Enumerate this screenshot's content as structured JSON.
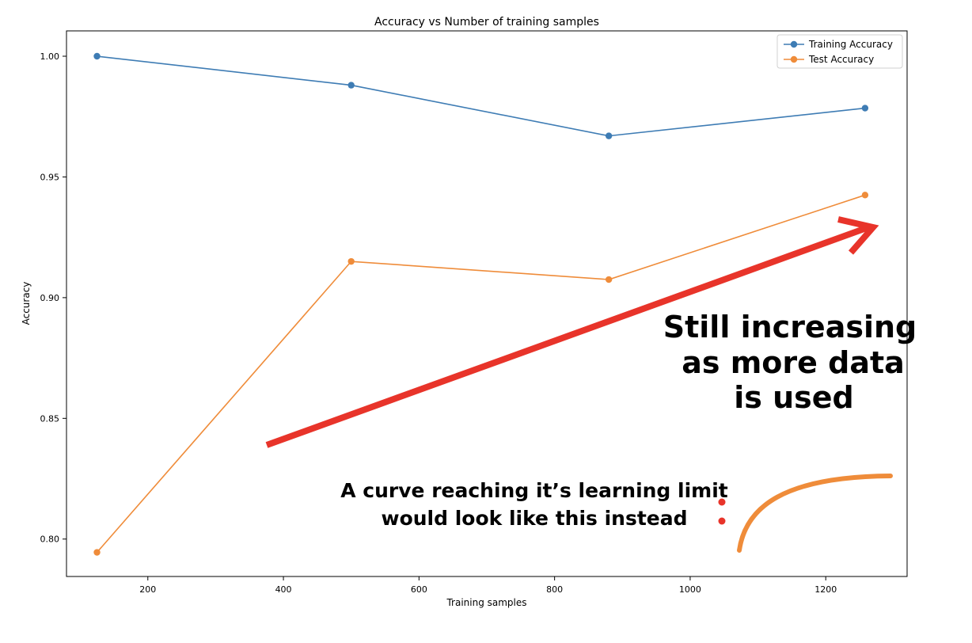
{
  "chart_data": {
    "type": "line",
    "title": "Accuracy vs Number of training samples",
    "xlabel": "Training samples",
    "ylabel": "Accuracy",
    "xlim": [
      80,
      1320
    ],
    "ylim": [
      0.7845,
      1.0105
    ],
    "x_ticks": [
      200,
      400,
      600,
      800,
      1000,
      1200
    ],
    "y_ticks": [
      0.8,
      0.85,
      0.9,
      0.95,
      1.0
    ],
    "x_tick_labels": [
      "200",
      "400",
      "600",
      "800",
      "1000",
      "1200"
    ],
    "y_tick_labels": [
      "0.80",
      "0.85",
      "0.90",
      "0.95",
      "1.00"
    ],
    "grid": false,
    "legend_position": "top-right",
    "x": [
      125,
      500,
      880,
      1258
    ],
    "series": [
      {
        "name": "Training Accuracy",
        "color": "#3e7cb4",
        "values": [
          1.0,
          0.988,
          0.967,
          0.9785
        ]
      },
      {
        "name": "Test Accuracy",
        "color": "#ef8c3a",
        "values": [
          0.7945,
          0.915,
          0.9075,
          0.9425
        ]
      }
    ],
    "annotations": {
      "trend_arrow_color": "#e8342a",
      "trend_text_lines": [
        "Still increasing",
        "as more data",
        "is used"
      ],
      "limit_text_lines": [
        "A curve reaching it’s learning limit",
        "would look like this instead"
      ],
      "limit_curve_color": "#ef8c3a"
    }
  }
}
